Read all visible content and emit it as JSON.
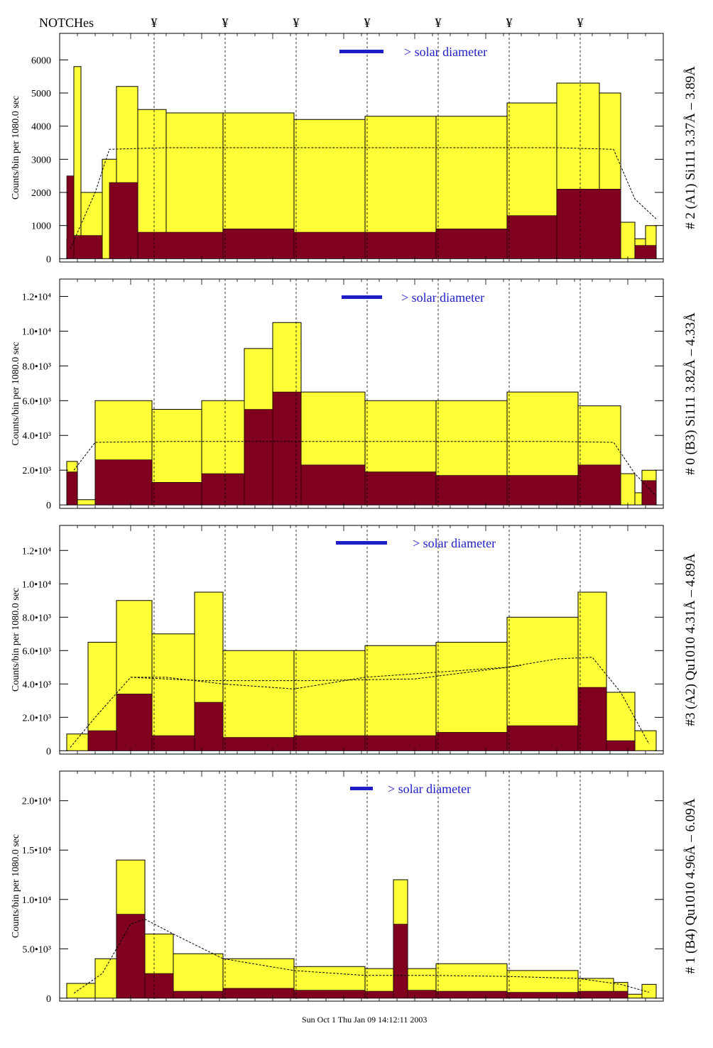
{
  "header": {
    "label": "NOTCHes",
    "notch_symbol": "¥",
    "notch_x": [
      1.33,
      2.33,
      3.33,
      4.33,
      5.33,
      6.33,
      7.33
    ]
  },
  "footer": {
    "text": "Sun Oct 1 Thu Jan 09 14:12:11 2003"
  },
  "colors": {
    "fill": "#ffff38",
    "inner": "#800020",
    "accent": "#1e1ec8"
  },
  "chart_data": [
    {
      "type": "bar",
      "title": "# 2 (A1) Si111  3.37Å – 3.89Å",
      "ylabel": "Counts/bin per   1080.0 sec",
      "solar_label": "> solar diameter",
      "ylim": [
        -100,
        6800
      ],
      "xlim": [
        0,
        8.5
      ],
      "ticks": [
        0,
        1000,
        2000,
        3000,
        4000,
        5000,
        6000
      ],
      "tick_labels": [
        "0",
        "1000",
        "2000",
        "3000",
        "4000",
        "5000",
        "6000"
      ],
      "outer_segments": [
        [
          0.1,
          0.2,
          600
        ],
        [
          0.2,
          0.3,
          5800
        ],
        [
          0.3,
          0.6,
          2000
        ],
        [
          0.6,
          0.8,
          3000
        ],
        [
          0.8,
          1.1,
          5200
        ],
        [
          1.1,
          1.5,
          4500
        ],
        [
          1.5,
          2.3,
          4400
        ],
        [
          2.3,
          3.3,
          4400
        ],
        [
          3.3,
          4.3,
          4200
        ],
        [
          4.3,
          5.3,
          4300
        ],
        [
          5.3,
          6.3,
          4300
        ],
        [
          6.3,
          7.0,
          4700
        ],
        [
          7.0,
          7.6,
          5300
        ],
        [
          7.6,
          7.9,
          5000
        ],
        [
          7.9,
          8.1,
          1100
        ],
        [
          8.1,
          8.25,
          600
        ],
        [
          8.25,
          8.4,
          1000
        ]
      ],
      "inner_segments": [
        [
          0.1,
          0.2,
          2500
        ],
        [
          0.2,
          0.6,
          700
        ],
        [
          0.7,
          1.1,
          2300
        ],
        [
          1.1,
          2.3,
          800
        ],
        [
          2.3,
          3.3,
          900
        ],
        [
          3.3,
          4.3,
          800
        ],
        [
          4.3,
          5.3,
          800
        ],
        [
          5.3,
          6.3,
          900
        ],
        [
          6.3,
          7.0,
          1300
        ],
        [
          7.0,
          7.9,
          2100
        ],
        [
          8.1,
          8.4,
          400
        ]
      ],
      "model_curve": [
        [
          0.15,
          300
        ],
        [
          0.5,
          2000
        ],
        [
          0.7,
          3300
        ],
        [
          1.5,
          3350
        ],
        [
          4.0,
          3350
        ],
        [
          7.0,
          3350
        ],
        [
          7.8,
          3300
        ],
        [
          8.1,
          1800
        ],
        [
          8.4,
          1200
        ]
      ]
    },
    {
      "type": "bar",
      "title": "# 0 (B3) Si111  3.82Å – 4.33Å",
      "ylabel": "Counts/bin per   1080.0 sec",
      "solar_label": "> solar diameter",
      "ylim": [
        -200,
        13000
      ],
      "xlim": [
        0,
        8.5
      ],
      "ticks": [
        0,
        2000,
        4000,
        6000,
        8000,
        10000,
        12000
      ],
      "tick_labels": [
        "0",
        "2.0•10³",
        "4.0•10³",
        "6.0•10³",
        "8.0•10³",
        "1.0•10⁴",
        "1.2•10⁴"
      ],
      "outer_segments": [
        [
          0.1,
          0.25,
          2500
        ],
        [
          0.25,
          0.5,
          300
        ],
        [
          0.5,
          1.3,
          6000
        ],
        [
          1.3,
          2.0,
          5500
        ],
        [
          2.0,
          2.6,
          6000
        ],
        [
          2.6,
          3.0,
          9000
        ],
        [
          3.0,
          3.4,
          10500
        ],
        [
          3.4,
          4.3,
          6500
        ],
        [
          4.3,
          5.3,
          6000
        ],
        [
          5.3,
          6.3,
          6000
        ],
        [
          6.3,
          7.3,
          6500
        ],
        [
          7.3,
          7.9,
          5700
        ],
        [
          7.9,
          8.1,
          1800
        ],
        [
          8.1,
          8.2,
          700
        ],
        [
          8.2,
          8.4,
          2000
        ]
      ],
      "inner_segments": [
        [
          0.1,
          0.25,
          1900
        ],
        [
          0.5,
          1.3,
          2600
        ],
        [
          1.3,
          2.0,
          1300
        ],
        [
          2.0,
          2.6,
          1800
        ],
        [
          2.6,
          3.0,
          5500
        ],
        [
          3.0,
          3.4,
          6500
        ],
        [
          3.4,
          4.3,
          2300
        ],
        [
          4.3,
          5.3,
          1900
        ],
        [
          5.3,
          6.3,
          1700
        ],
        [
          6.3,
          7.3,
          1700
        ],
        [
          7.3,
          7.9,
          2300
        ],
        [
          8.2,
          8.4,
          1400
        ]
      ],
      "model_curve": [
        [
          0.2,
          2000
        ],
        [
          0.5,
          3600
        ],
        [
          1.5,
          3650
        ],
        [
          4.0,
          3650
        ],
        [
          7.0,
          3650
        ],
        [
          7.8,
          3600
        ],
        [
          8.1,
          1800
        ],
        [
          8.4,
          500
        ]
      ]
    },
    {
      "type": "bar",
      "title": "#3 (A2) Qu1010  4.31Å – 4.89Å",
      "ylabel": "Counts/bin per   1080.0 sec",
      "solar_label": "> solar diameter",
      "ylim": [
        -200,
        13500
      ],
      "xlim": [
        0,
        8.5
      ],
      "ticks": [
        0,
        2000,
        4000,
        6000,
        8000,
        10000,
        12000
      ],
      "tick_labels": [
        "0",
        "2.0•10³",
        "4.0•10³",
        "6.0•10³",
        "8.0•10³",
        "1.0•10⁴",
        "1.2•10⁴"
      ],
      "outer_segments": [
        [
          0.1,
          0.4,
          1000
        ],
        [
          0.4,
          0.8,
          6500
        ],
        [
          0.8,
          1.3,
          9000
        ],
        [
          1.3,
          1.9,
          7000
        ],
        [
          1.9,
          2.3,
          9500
        ],
        [
          2.3,
          3.3,
          6000
        ],
        [
          3.3,
          4.3,
          6000
        ],
        [
          4.3,
          5.3,
          6300
        ],
        [
          5.3,
          6.3,
          6500
        ],
        [
          6.3,
          7.3,
          8000
        ],
        [
          7.3,
          7.7,
          9500
        ],
        [
          7.7,
          8.1,
          3500
        ],
        [
          8.1,
          8.4,
          1200
        ]
      ],
      "inner_segments": [
        [
          0.4,
          0.8,
          1200
        ],
        [
          0.8,
          1.3,
          3400
        ],
        [
          1.3,
          1.9,
          900
        ],
        [
          1.9,
          2.3,
          2900
        ],
        [
          2.3,
          3.3,
          800
        ],
        [
          3.3,
          4.3,
          900
        ],
        [
          4.3,
          5.3,
          900
        ],
        [
          5.3,
          6.3,
          1100
        ],
        [
          6.3,
          7.3,
          1500
        ],
        [
          7.3,
          7.7,
          3800
        ],
        [
          7.7,
          8.1,
          600
        ]
      ],
      "model_curve": [
        [
          0.15,
          200
        ],
        [
          0.5,
          2000
        ],
        [
          1.0,
          4400
        ],
        [
          1.5,
          4400
        ],
        [
          2.3,
          4000
        ],
        [
          3.3,
          3700
        ],
        [
          4.3,
          4400
        ],
        [
          5.3,
          4700
        ],
        [
          6.3,
          5000
        ],
        [
          7.0,
          5500
        ],
        [
          7.5,
          5600
        ],
        [
          7.9,
          3500
        ],
        [
          8.3,
          400
        ]
      ],
      "model_curve_2": [
        [
          1.0,
          4400
        ],
        [
          2.0,
          4200
        ],
        [
          3.5,
          4200
        ],
        [
          5.0,
          4300
        ],
        [
          6.5,
          5100
        ]
      ]
    },
    {
      "type": "bar",
      "title": "# 1 (B4) Qu1010 4.96Å – 6.09Å",
      "ylabel": "Counts/bin per   1080.0 sec",
      "solar_label": "> solar diameter",
      "ylim": [
        -300,
        23000
      ],
      "xlim": [
        0,
        8.5
      ],
      "ticks": [
        0,
        5000,
        10000,
        15000,
        20000
      ],
      "tick_labels": [
        "0",
        "5.0•10³",
        "1.0•10⁴",
        "1.5•10⁴",
        "2.0•10⁴"
      ],
      "outer_segments": [
        [
          0.1,
          0.5,
          1500
        ],
        [
          0.5,
          0.8,
          4000
        ],
        [
          0.8,
          1.2,
          14000
        ],
        [
          1.2,
          1.6,
          6500
        ],
        [
          1.6,
          2.3,
          4500
        ],
        [
          2.3,
          3.3,
          4000
        ],
        [
          3.3,
          4.3,
          3200
        ],
        [
          4.3,
          4.7,
          3000
        ],
        [
          4.7,
          4.9,
          12000
        ],
        [
          4.9,
          5.3,
          3000
        ],
        [
          5.3,
          6.3,
          3500
        ],
        [
          6.3,
          7.3,
          2800
        ],
        [
          7.3,
          7.8,
          2000
        ],
        [
          7.8,
          8.0,
          1600
        ],
        [
          8.0,
          8.2,
          400
        ],
        [
          8.2,
          8.4,
          1400
        ]
      ],
      "inner_segments": [
        [
          0.8,
          1.2,
          8500
        ],
        [
          1.2,
          1.6,
          2500
        ],
        [
          1.6,
          2.3,
          700
        ],
        [
          2.3,
          3.3,
          1000
        ],
        [
          3.3,
          4.3,
          800
        ],
        [
          4.3,
          4.7,
          700
        ],
        [
          4.7,
          4.9,
          7500
        ],
        [
          4.9,
          5.3,
          800
        ],
        [
          5.3,
          6.3,
          700
        ],
        [
          6.3,
          7.3,
          600
        ],
        [
          7.3,
          8.0,
          700
        ]
      ],
      "model_curve": [
        [
          0.2,
          500
        ],
        [
          0.6,
          2500
        ],
        [
          1.0,
          7500
        ],
        [
          1.2,
          8000
        ],
        [
          1.6,
          6500
        ],
        [
          2.3,
          4000
        ],
        [
          3.3,
          2800
        ],
        [
          4.3,
          2300
        ],
        [
          5.3,
          2300
        ],
        [
          6.3,
          2200
        ],
        [
          7.3,
          2000
        ],
        [
          7.9,
          1400
        ],
        [
          8.3,
          600
        ]
      ],
      "model_curve_2": []
    }
  ]
}
